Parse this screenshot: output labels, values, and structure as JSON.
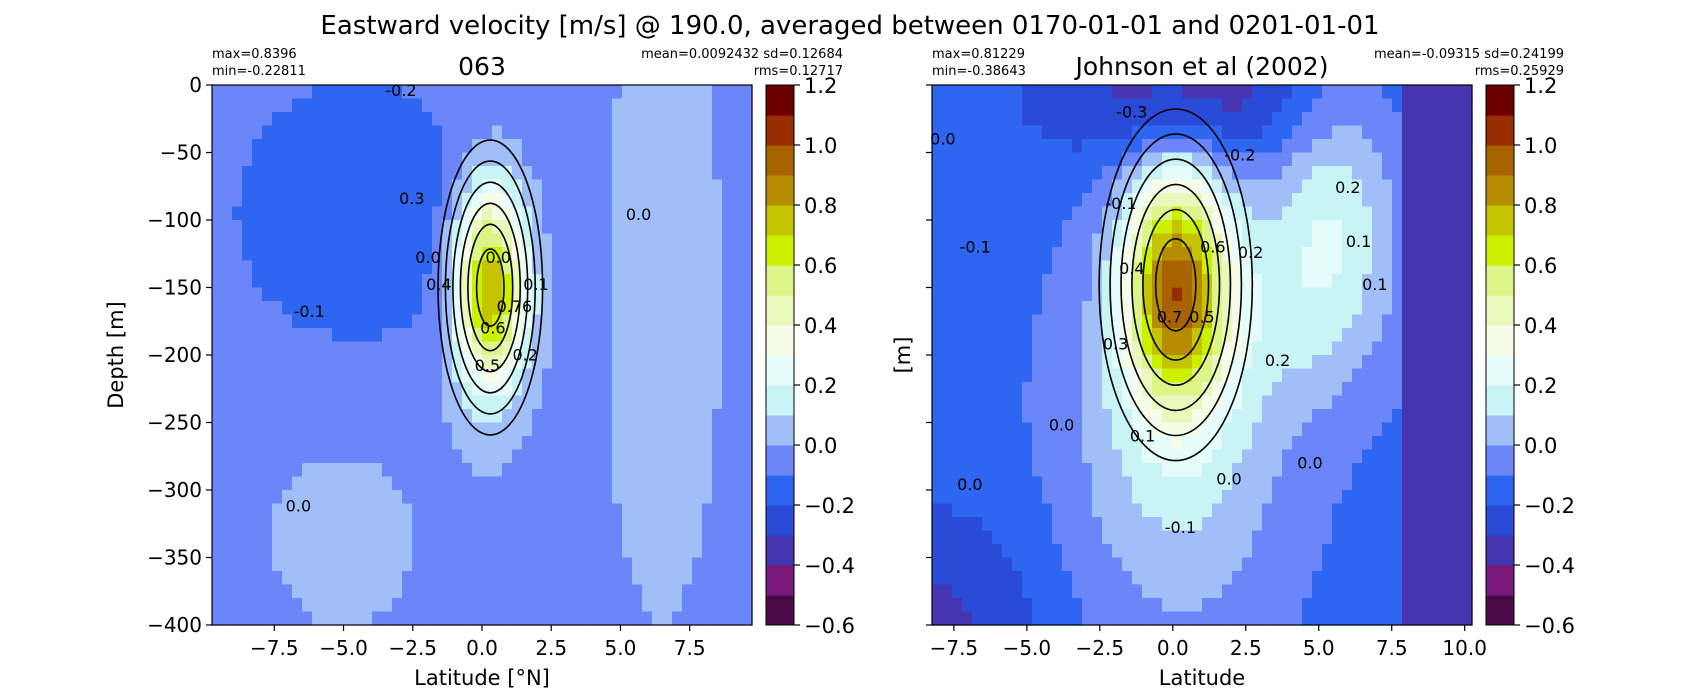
{
  "figure": {
    "suptitle": "Eastward velocity [m/s] @ 190.0, averaged between 0170-01-01 and 0201-01-01"
  },
  "colorbar": {
    "ticks": [
      "1.2",
      "1.0",
      "0.8",
      "0.6",
      "0.4",
      "0.2",
      "0.0",
      "−0.2",
      "−0.4",
      "−0.6"
    ],
    "levels": [
      -0.6,
      -0.5,
      -0.4,
      -0.3,
      -0.2,
      -0.1,
      0.0,
      0.1,
      0.2,
      0.3,
      0.4,
      0.5,
      0.6,
      0.7,
      0.8,
      0.9,
      1.0,
      1.1,
      1.2
    ],
    "colors": [
      "#4a0a4a",
      "#7a1a7a",
      "#4535b0",
      "#2a4ad8",
      "#2e66f2",
      "#6a86f8",
      "#a0bef8",
      "#c8f4f6",
      "#e6fcfc",
      "#f6fce8",
      "#eaf8bc",
      "#dcf588",
      "#cdf000",
      "#c4c400",
      "#b68d00",
      "#a86200",
      "#972c00",
      "#6a0000"
    ]
  },
  "chart_data": [
    {
      "type": "heatmap",
      "title": "063",
      "stats_left": [
        "max=0.8396",
        "min=-0.22811"
      ],
      "stats_right": [
        "mean=0.0092432 sd=0.12684",
        "rms=0.12717"
      ],
      "xlabel": "Latitude [°N]",
      "ylabel": "Depth [m]",
      "xlim": [
        -9.75,
        9.75
      ],
      "ylim": [
        -400,
        0
      ],
      "xticks": [
        -7.5,
        -5.0,
        -2.5,
        0.0,
        2.5,
        5.0,
        7.5
      ],
      "xtick_labels": [
        "−7.5",
        "−5.0",
        "−2.5",
        "0.0",
        "2.5",
        "5.0",
        "7.5"
      ],
      "yticks": [
        0,
        -50,
        -100,
        -150,
        -200,
        -250,
        -300,
        -350,
        -400
      ],
      "ytick_labels": [
        "0",
        "−50",
        "−100",
        "−150",
        "−200",
        "−250",
        "−300",
        "−350",
        "−400"
      ],
      "contour_labels": [
        "-0.2",
        "0.0",
        "0.3",
        "0.0",
        "-0.1",
        "0.4",
        "0.1",
        "0.76",
        "0.6",
        "0.5",
        "0.2",
        "0.0",
        "0.0"
      ],
      "max_value": 0.8396,
      "min_value": -0.22811
    },
    {
      "type": "heatmap",
      "title": "Johnson et al (2002)",
      "stats_left": [
        "max=0.81229",
        "min=-0.38643"
      ],
      "stats_right": [
        "mean=-0.09315 sd=0.24199",
        "rms=0.25929"
      ],
      "xlabel": "Latitude",
      "ylabel": "[m]",
      "xlim": [
        -8.25,
        10.25
      ],
      "ylim": [
        -400,
        0
      ],
      "xticks": [
        -7.5,
        -5.0,
        -2.5,
        0.0,
        2.5,
        5.0,
        7.5,
        10.0
      ],
      "xtick_labels": [
        "−7.5",
        "−5.0",
        "−2.5",
        "0.0",
        "2.5",
        "5.0",
        "7.5",
        "10.0"
      ],
      "yticks": [
        0,
        -50,
        -100,
        -150,
        -200,
        -250,
        -300,
        -350,
        -400
      ],
      "ytick_labels": [],
      "contour_labels": [
        "0.0",
        "-0.3",
        "-0.2",
        "-0.1",
        "-0.1",
        "0.4",
        "0.6",
        "0.2",
        "0.2",
        "0.1",
        "0.1",
        "0.7",
        "0.5",
        "0.3",
        "0.2",
        "0.0",
        "0.1",
        "0.0",
        "0.0",
        "0.0",
        "-0.1"
      ],
      "max_value": 0.81229,
      "min_value": -0.38643
    }
  ]
}
